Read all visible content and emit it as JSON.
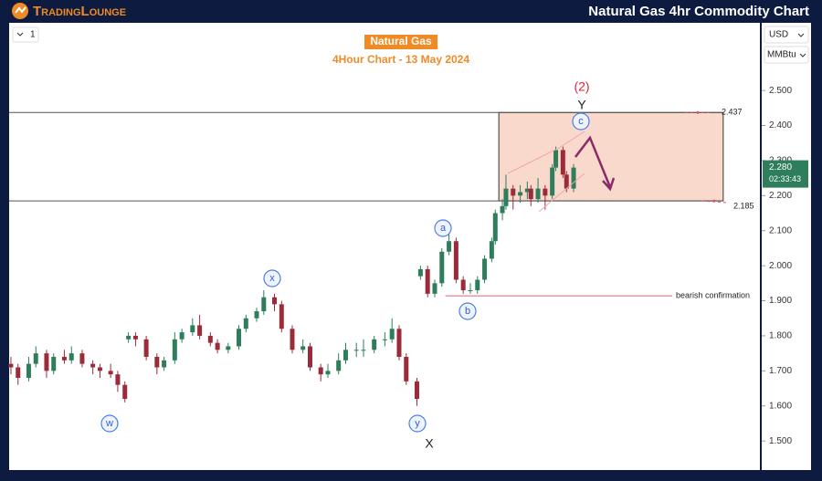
{
  "header": {
    "brand": "TradingLounge",
    "title": "Natural Gas 4hr Commodity Chart"
  },
  "toolbar": {
    "interval": "1",
    "currency": "USD",
    "unit": "MMBtu"
  },
  "chart_data": {
    "type": "candlestick",
    "title": "Natural Gas",
    "subtitle": "4Hour Chart - 13 May 2024",
    "x": [
      0,
      2,
      5,
      7,
      10,
      12,
      15,
      17,
      20,
      23,
      25,
      28,
      30,
      32,
      33,
      35,
      38,
      41,
      43,
      46,
      48,
      51,
      53,
      56,
      58,
      61,
      64,
      66,
      69,
      71,
      74,
      76,
      79,
      82,
      84,
      87,
      89,
      92,
      94,
      97,
      99,
      102,
      105,
      107,
      109,
      111,
      114,
      115,
      117,
      119,
      121,
      123,
      125,
      127,
      129,
      131,
      133,
      135,
      136,
      138,
      139,
      141,
      143,
      145,
      146,
      148,
      150,
      152,
      153,
      155,
      156,
      158
    ],
    "open": [
      1.72,
      1.71,
      1.68,
      1.72,
      1.75,
      1.7,
      1.74,
      1.73,
      1.75,
      1.72,
      1.71,
      1.7,
      1.69,
      1.66,
      1.79,
      1.8,
      1.79,
      1.74,
      1.71,
      1.73,
      1.79,
      1.81,
      1.83,
      1.8,
      1.78,
      1.76,
      1.77,
      1.82,
      1.85,
      1.87,
      1.91,
      1.89,
      1.82,
      1.76,
      1.77,
      1.71,
      1.69,
      1.7,
      1.73,
      1.76,
      1.76,
      1.76,
      1.79,
      1.79,
      1.82,
      1.74,
      1.67,
      1.97,
      1.99,
      1.92,
      1.95,
      2.04,
      2.07,
      1.96,
      1.93,
      1.93,
      1.96,
      2.02,
      2.07,
      2.15,
      2.17,
      2.22,
      2.2,
      2.21,
      2.22,
      2.19,
      2.22,
      2.2,
      2.28,
      2.33,
      2.26,
      2.22
    ],
    "high": [
      1.74,
      1.72,
      1.74,
      1.77,
      1.76,
      1.75,
      1.76,
      1.77,
      1.76,
      1.73,
      1.72,
      1.72,
      1.7,
      1.67,
      1.81,
      1.81,
      1.8,
      1.75,
      1.74,
      1.81,
      1.82,
      1.85,
      1.86,
      1.81,
      1.79,
      1.78,
      1.83,
      1.86,
      1.88,
      1.93,
      1.92,
      1.9,
      1.83,
      1.79,
      1.78,
      1.72,
      1.72,
      1.75,
      1.78,
      1.78,
      1.79,
      1.8,
      1.81,
      1.85,
      1.83,
      1.75,
      1.68,
      2.0,
      2.0,
      1.96,
      2.05,
      2.09,
      2.08,
      1.97,
      1.95,
      1.97,
      2.03,
      2.08,
      2.16,
      2.19,
      2.26,
      2.23,
      2.23,
      2.24,
      2.23,
      2.25,
      2.23,
      2.29,
      2.34,
      2.34,
      2.27,
      2.29
    ],
    "low": [
      1.69,
      1.66,
      1.67,
      1.71,
      1.68,
      1.69,
      1.72,
      1.72,
      1.71,
      1.69,
      1.68,
      1.68,
      1.64,
      1.61,
      1.78,
      1.77,
      1.73,
      1.69,
      1.7,
      1.72,
      1.78,
      1.8,
      1.79,
      1.77,
      1.75,
      1.75,
      1.76,
      1.81,
      1.84,
      1.86,
      1.87,
      1.81,
      1.75,
      1.75,
      1.7,
      1.67,
      1.68,
      1.69,
      1.72,
      1.74,
      1.74,
      1.75,
      1.77,
      1.78,
      1.73,
      1.66,
      1.6,
      1.96,
      1.91,
      1.91,
      1.94,
      2.03,
      1.95,
      1.92,
      1.92,
      1.92,
      1.95,
      2.01,
      2.06,
      2.13,
      2.16,
      2.16,
      2.18,
      2.19,
      2.17,
      2.18,
      2.16,
      2.19,
      2.27,
      2.25,
      2.21,
      2.21
    ],
    "close": [
      1.71,
      1.68,
      1.72,
      1.75,
      1.7,
      1.74,
      1.73,
      1.75,
      1.72,
      1.71,
      1.7,
      1.69,
      1.66,
      1.62,
      1.8,
      1.79,
      1.74,
      1.71,
      1.73,
      1.79,
      1.81,
      1.83,
      1.8,
      1.78,
      1.76,
      1.77,
      1.82,
      1.85,
      1.87,
      1.91,
      1.89,
      1.82,
      1.76,
      1.77,
      1.71,
      1.69,
      1.7,
      1.73,
      1.76,
      1.76,
      1.76,
      1.79,
      1.79,
      1.82,
      1.74,
      1.67,
      1.62,
      1.99,
      1.92,
      1.95,
      2.04,
      2.07,
      1.96,
      1.93,
      1.93,
      1.96,
      2.02,
      2.07,
      2.15,
      2.17,
      2.22,
      2.2,
      2.21,
      2.22,
      2.19,
      2.22,
      2.2,
      2.28,
      2.33,
      2.26,
      2.22,
      2.28
    ],
    "up_color": "#2e7d5b",
    "down_color": "#9c2b3a",
    "xlim": [
      -0.5,
      210.3
    ],
    "ylim": [
      1.417,
      2.693
    ],
    "yticks": [
      {
        "value": 2.5,
        "label": "2.500"
      },
      {
        "value": 2.4,
        "label": "2.400"
      },
      {
        "value": 2.3,
        "label": "2.300"
      },
      {
        "value": 2.2,
        "label": "2.200"
      },
      {
        "value": 2.1,
        "label": "2.100"
      },
      {
        "value": 2.0,
        "label": "2.000"
      },
      {
        "value": 1.9,
        "label": "1.900"
      },
      {
        "value": 1.8,
        "label": "1.800"
      },
      {
        "value": 1.7,
        "label": "1.700"
      },
      {
        "value": 1.6,
        "label": "1.600"
      },
      {
        "value": 1.5,
        "label": "1.500"
      }
    ],
    "levels": [
      2.437,
      2.185
    ],
    "bearish_level": 1.914,
    "bearish_label": "bearish confirmation",
    "last_price": {
      "value": 2.28,
      "label": "2.280"
    },
    "countdown": "02:33:43",
    "wave_labels": [
      "(2)",
      "Y",
      "X",
      "w",
      "x",
      "y",
      "a",
      "b",
      "c"
    ]
  }
}
